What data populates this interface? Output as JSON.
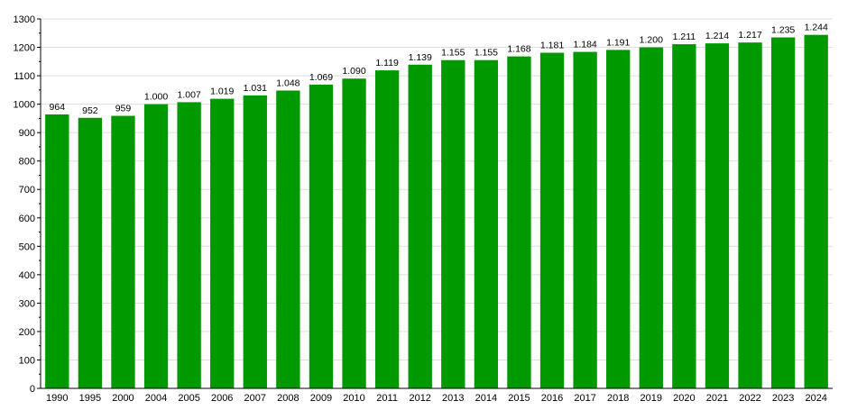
{
  "chart_data": {
    "type": "bar",
    "title": "",
    "xlabel": "",
    "ylabel": "",
    "categories": [
      "1990",
      "1995",
      "2000",
      "2004",
      "2005",
      "2006",
      "2007",
      "2008",
      "2009",
      "2010",
      "2011",
      "2012",
      "2013",
      "2014",
      "2015",
      "2016",
      "2017",
      "2018",
      "2019",
      "2020",
      "2021",
      "2022",
      "2023",
      "2024"
    ],
    "values": [
      964,
      952,
      959,
      1000,
      1007,
      1019,
      1031,
      1048,
      1069,
      1090,
      1119,
      1139,
      1155,
      1155,
      1168,
      1181,
      1184,
      1191,
      1200,
      1211,
      1214,
      1217,
      1235,
      1244
    ],
    "value_labels": [
      "964",
      "952",
      "959",
      "1.000",
      "1.007",
      "1.019",
      "1.031",
      "1.048",
      "1.069",
      "1.090",
      "1.119",
      "1.139",
      "1.155",
      "1.155",
      "1.168",
      "1.181",
      "1.184",
      "1.191",
      "1.200",
      "1.211",
      "1.214",
      "1.217",
      "1.235",
      "1.244"
    ],
    "ylim": [
      0,
      1300
    ],
    "yticks": [
      0,
      100,
      200,
      300,
      400,
      500,
      600,
      700,
      800,
      900,
      1000,
      1100,
      1200,
      1300
    ],
    "grid": true,
    "legend": "none",
    "bar_color": "#009900",
    "grid_color": "#dddddd",
    "axis_color": "#000000"
  }
}
